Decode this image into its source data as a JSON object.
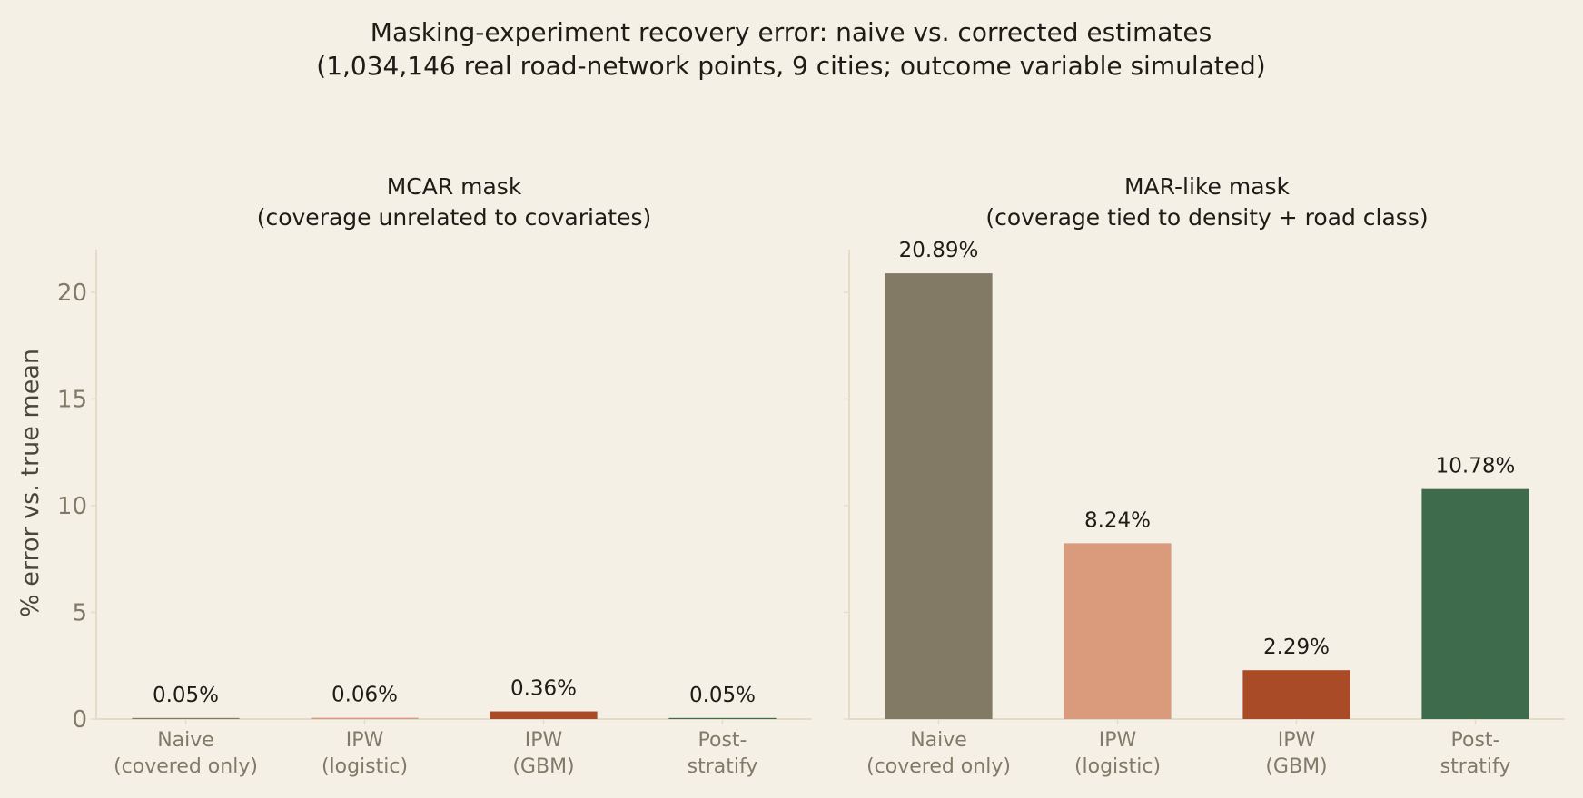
{
  "chart_data": {
    "type": "bar",
    "title": "Masking-experiment recovery error: naive vs. corrected estimates",
    "subtitle": "(1,034,146 real road-network points, 9 cities; outcome variable simulated)",
    "ylabel": "% error vs. true mean",
    "ylim": [
      0,
      22
    ],
    "yticks": [
      0,
      5,
      10,
      15,
      20
    ],
    "grid": false,
    "categories": [
      "Naive\n(covered only)",
      "IPW\n(logistic)",
      "IPW\n(GBM)",
      "Post-\nstratify"
    ],
    "colors": [
      "#827a65",
      "#d99b7c",
      "#a84b26",
      "#3e6b4b"
    ],
    "panels": [
      {
        "title": "MCAR mask",
        "subtitle": "(coverage unrelated to covariates)",
        "values": [
          0.05,
          0.06,
          0.36,
          0.05
        ],
        "labels": [
          "0.05%",
          "0.06%",
          "0.36%",
          "0.05%"
        ]
      },
      {
        "title": "MAR-like mask",
        "subtitle": "(coverage tied to density + road class)",
        "values": [
          20.89,
          8.24,
          2.29,
          10.78
        ],
        "labels": [
          "20.89%",
          "8.24%",
          "2.29%",
          "10.78%"
        ]
      }
    ]
  }
}
